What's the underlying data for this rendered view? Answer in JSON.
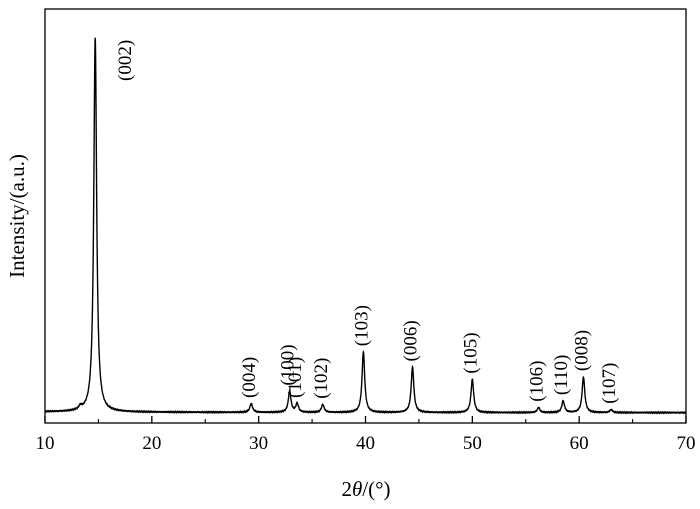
{
  "chart_data": {
    "type": "line",
    "title": "",
    "xlabel_prefix": "2",
    "xlabel_symbol": "θ",
    "xlabel_suffix": "/(°)",
    "ylabel": "Intensity/(a.u.)",
    "xlim": [
      10,
      70
    ],
    "ylim": [
      0,
      100
    ],
    "y_ticks_shown": false,
    "grid": false,
    "x_ticks": [
      10,
      20,
      30,
      40,
      50,
      60,
      70
    ],
    "x_tick_labels": [
      "10",
      "20",
      "30",
      "40",
      "50",
      "60",
      "70"
    ],
    "baseline": 9.5,
    "peaks": [
      {
        "label": "(002)",
        "x": 14.7,
        "height": 100
      },
      {
        "label": "(004)",
        "x": 29.3,
        "height": 11.6
      },
      {
        "label": "(100)",
        "x": 32.9,
        "height": 14.6
      },
      {
        "label": "(101)",
        "x": 33.6,
        "height": 11.6
      },
      {
        "label": "(102)",
        "x": 36.0,
        "height": 11.4
      },
      {
        "label": "(103)",
        "x": 39.8,
        "height": 24.1
      },
      {
        "label": "(006)",
        "x": 44.4,
        "height": 20.4
      },
      {
        "label": "(105)",
        "x": 50.0,
        "height": 17.5
      },
      {
        "label": "(106)",
        "x": 56.2,
        "height": 10.7
      },
      {
        "label": "(110)",
        "x": 58.5,
        "height": 12.3
      },
      {
        "label": "(008)",
        "x": 60.4,
        "height": 18.1
      },
      {
        "label": "(107)",
        "x": 63.0,
        "height": 10.2
      }
    ],
    "minor_peaks": [
      {
        "x": 13.3,
        "height": 10.3
      }
    ]
  }
}
